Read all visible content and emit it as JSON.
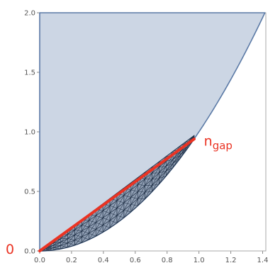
{
  "chart_data": {
    "type": "area",
    "title": "",
    "xlabel": "",
    "ylabel": "",
    "xlim": [
      0,
      1.414
    ],
    "ylim": [
      0,
      2.0
    ],
    "x_ticks": [
      "0.0",
      "0.2",
      "0.4",
      "0.6",
      "0.8",
      "1.0",
      "1.2",
      "1.4"
    ],
    "y_ticks": [
      "0.0",
      "0.5",
      "1.0",
      "1.5",
      "2.0"
    ],
    "grid": false,
    "legend": "none",
    "region": {
      "boundary_curve": "y = x^2",
      "x_range": [
        0,
        1.414
      ],
      "top_y": 2.0,
      "fill_color": "#ccd6e4",
      "edge_color": "#5b7aa6"
    },
    "mesh": {
      "description": "triangulated sliver between y = x^2 and the line y = x",
      "x_range": [
        0,
        0.97
      ],
      "color": "#1f2f45"
    },
    "line": {
      "x": [
        0,
        0.97
      ],
      "y": [
        0,
        0.94
      ],
      "color": "#ea3323"
    },
    "annotations": [
      {
        "text": "n",
        "subscript": "gap",
        "x": 1.0,
        "y": 0.95
      },
      {
        "text": "0",
        "x": -0.05,
        "y": 0.0
      }
    ]
  }
}
